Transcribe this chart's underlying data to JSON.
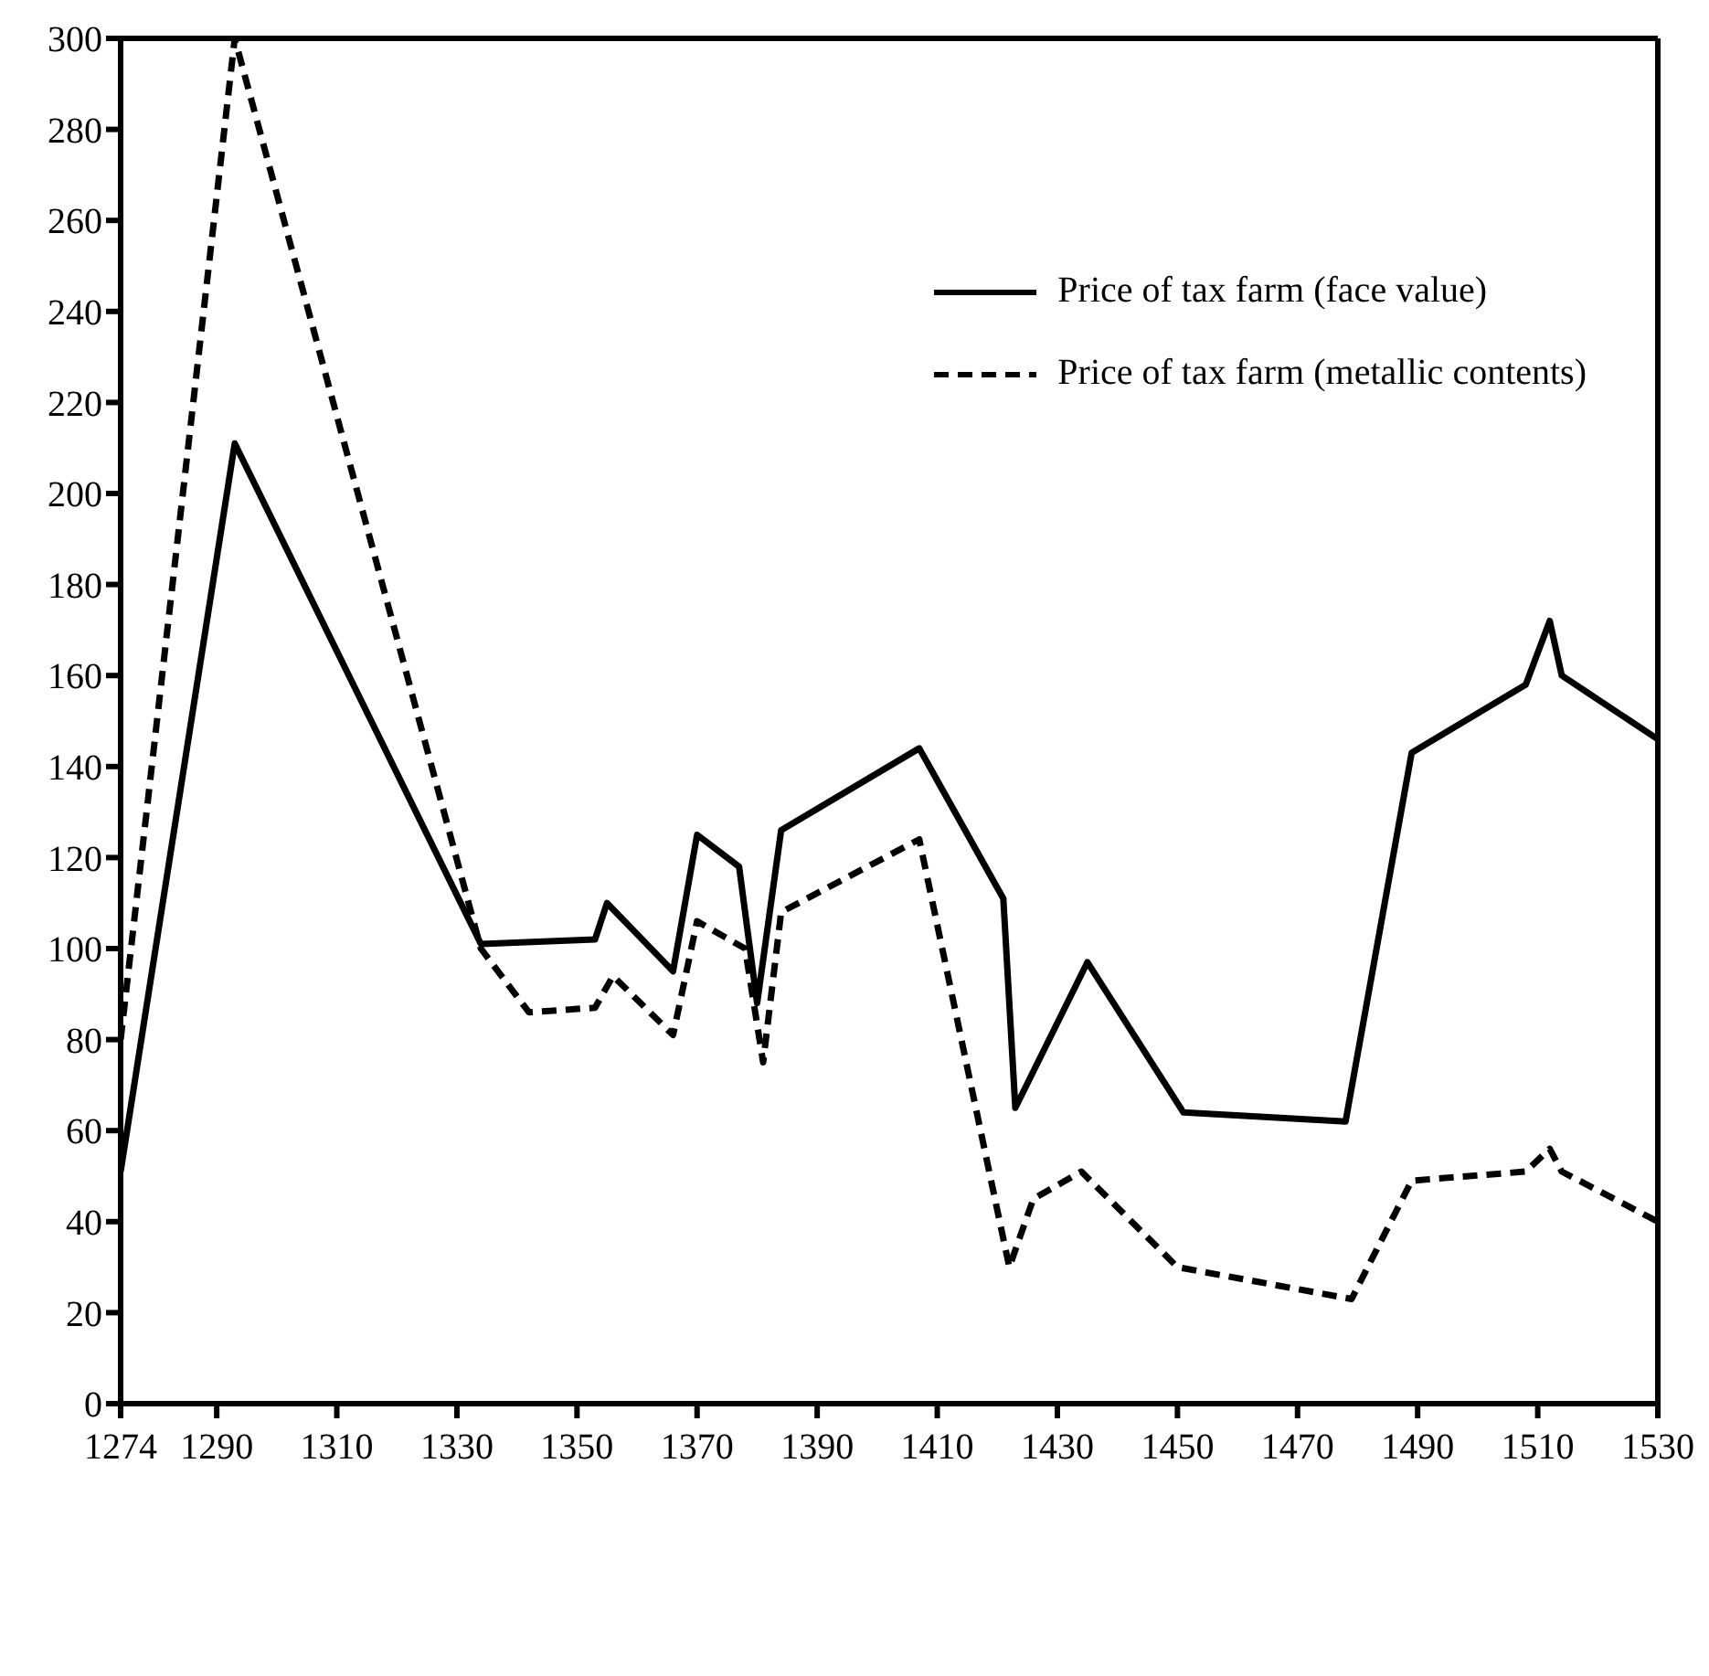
{
  "chart_data": {
    "type": "line",
    "marker": "none",
    "grid": false,
    "legend": "top right",
    "xlim": [
      1274,
      1530
    ],
    "xticks": [
      1274,
      1290,
      1310,
      1330,
      1350,
      1370,
      1390,
      1410,
      1430,
      1450,
      1470,
      1490,
      1510,
      1530
    ],
    "ylim": [
      0,
      300
    ],
    "yticks": [
      0,
      20,
      40,
      60,
      80,
      100,
      120,
      140,
      160,
      180,
      200,
      220,
      240,
      260,
      280,
      300
    ],
    "series": [
      {
        "name": "Price of tax farm (face value)",
        "color": "#000000",
        "line_style": "solid",
        "x": [
          1274,
          1293,
          1334,
          1353,
          1355,
          1366,
          1370,
          1377,
          1380,
          1384,
          1407,
          1421,
          1423,
          1435,
          1451,
          1478,
          1489,
          1508,
          1512,
          1514,
          1530
        ],
        "values": [
          51,
          211,
          101,
          102,
          110,
          95,
          125,
          118,
          88,
          126,
          144,
          111,
          65,
          97,
          64,
          62,
          143,
          158,
          172,
          160,
          146
        ]
      },
      {
        "name": "Price of tax farm (metallic contents)",
        "color": "#000000",
        "line_style": "dashed",
        "x": [
          1274,
          1293,
          1334,
          1342,
          1353,
          1356,
          1366,
          1370,
          1378,
          1381,
          1384,
          1407,
          1422,
          1426,
          1434,
          1450,
          1479,
          1489,
          1508,
          1512,
          1514,
          1530
        ],
        "values": [
          80,
          300,
          100,
          86,
          87,
          94,
          81,
          106,
          100,
          75,
          108,
          124,
          30,
          45,
          51,
          30,
          23,
          49,
          51,
          56,
          51,
          40
        ]
      }
    ]
  }
}
